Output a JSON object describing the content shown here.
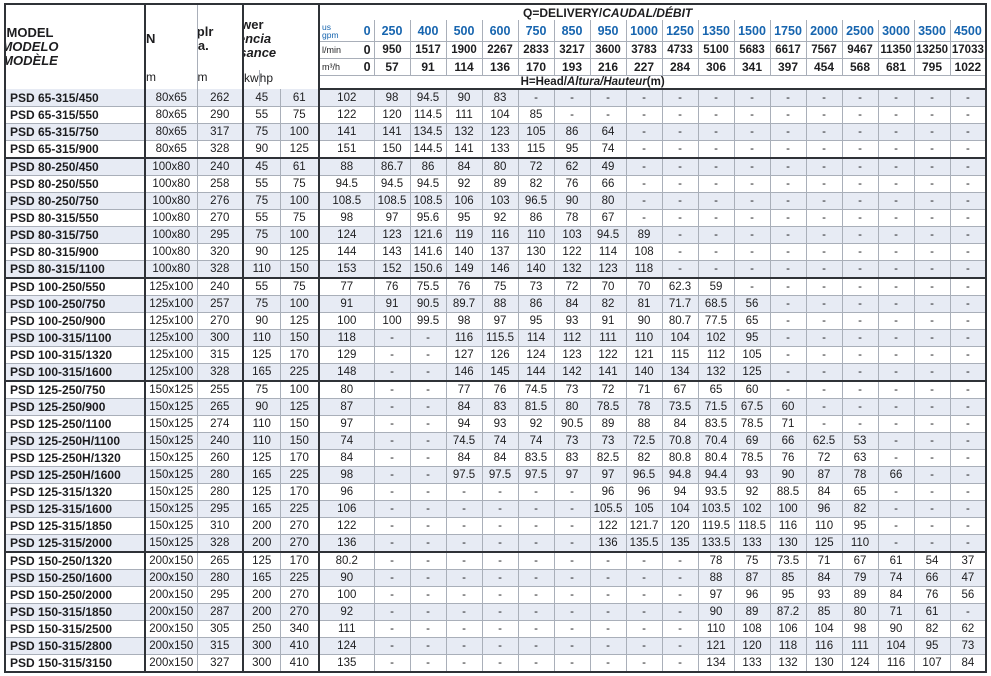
{
  "colors": {
    "accent_blue": "#1765af",
    "stripe_row": "#e7ebf4",
    "border_dark": "#2f3237",
    "border_light": "#a9afb9",
    "text": "#1d1d1f"
  },
  "table": {
    "q_title_plain": "Q=DELIVERY/",
    "q_title_italic": "CAUDAL/DÉBIT",
    "h_title_plain": "H=Head/",
    "h_title_italic": "Altura/Hauteur",
    "h_title_suffix": "(m)",
    "model_header": {
      "line1": "MODEL",
      "line2": "MODELO",
      "line3": "MODÈLE"
    },
    "dn_header": {
      "label": "DN",
      "unit": "mm"
    },
    "implr_header": {
      "line1": "Implr",
      "line2": "dia.",
      "unit": "mm"
    },
    "power_header": {
      "line1": "Power",
      "line2": "Potencia",
      "line3": "Puissance",
      "kw": "kw",
      "hp": "hp"
    },
    "flow_rows": [
      {
        "label_top": "us",
        "label_bottom": "gpm",
        "values": [
          "0",
          "250",
          "400",
          "500",
          "600",
          "750",
          "850",
          "950",
          "1000",
          "1250",
          "1350",
          "1500",
          "1750",
          "2000",
          "2500",
          "3000",
          "3500",
          "4500"
        ]
      },
      {
        "label": "l/min",
        "values": [
          "0",
          "950",
          "1517",
          "1900",
          "2267",
          "2833",
          "3217",
          "3600",
          "3783",
          "4733",
          "5100",
          "5683",
          "6617",
          "7567",
          "9467",
          "11350",
          "13250",
          "17033"
        ]
      },
      {
        "label": "m³/h",
        "values": [
          "0",
          "57",
          "91",
          "114",
          "136",
          "170",
          "193",
          "216",
          "227",
          "284",
          "306",
          "341",
          "397",
          "454",
          "568",
          "681",
          "795",
          "1022"
        ]
      }
    ],
    "rows": [
      {
        "model": "PSD 65-315/450",
        "dn": "80x65",
        "implr": "262",
        "kw": "45",
        "hp": "61",
        "group_end": false,
        "heads": [
          "102",
          "98",
          "94.5",
          "90",
          "83",
          "-",
          "-",
          "-",
          "-",
          "-",
          "-",
          "-",
          "-",
          "-",
          "-",
          "-",
          "-",
          "-"
        ]
      },
      {
        "model": "PSD 65-315/550",
        "dn": "80x65",
        "implr": "290",
        "kw": "55",
        "hp": "75",
        "group_end": false,
        "heads": [
          "122",
          "120",
          "114.5",
          "111",
          "104",
          "85",
          "-",
          "-",
          "-",
          "-",
          "-",
          "-",
          "-",
          "-",
          "-",
          "-",
          "-",
          "-"
        ]
      },
      {
        "model": "PSD 65-315/750",
        "dn": "80x65",
        "implr": "317",
        "kw": "75",
        "hp": "100",
        "group_end": false,
        "heads": [
          "141",
          "141",
          "134.5",
          "132",
          "123",
          "105",
          "86",
          "64",
          "-",
          "-",
          "-",
          "-",
          "-",
          "-",
          "-",
          "-",
          "-",
          "-"
        ]
      },
      {
        "model": "PSD 65-315/900",
        "dn": "80x65",
        "implr": "328",
        "kw": "90",
        "hp": "125",
        "group_end": true,
        "heads": [
          "151",
          "150",
          "144.5",
          "141",
          "133",
          "115",
          "95",
          "74",
          "-",
          "-",
          "-",
          "-",
          "-",
          "-",
          "-",
          "-",
          "-",
          "-"
        ]
      },
      {
        "model": "PSD 80-250/450",
        "dn": "100x80",
        "implr": "240",
        "kw": "45",
        "hp": "61",
        "group_end": false,
        "heads": [
          "88",
          "86.7",
          "86",
          "84",
          "80",
          "72",
          "62",
          "49",
          "-",
          "-",
          "-",
          "-",
          "-",
          "-",
          "-",
          "-",
          "-",
          "-"
        ]
      },
      {
        "model": "PSD 80-250/550",
        "dn": "100x80",
        "implr": "258",
        "kw": "55",
        "hp": "75",
        "group_end": false,
        "heads": [
          "94.5",
          "94.5",
          "94.5",
          "92",
          "89",
          "82",
          "76",
          "66",
          "-",
          "-",
          "-",
          "-",
          "-",
          "-",
          "-",
          "-",
          "-",
          "-"
        ]
      },
      {
        "model": "PSD 80-250/750",
        "dn": "100x80",
        "implr": "276",
        "kw": "75",
        "hp": "100",
        "group_end": false,
        "heads": [
          "108.5",
          "108.5",
          "108.5",
          "106",
          "103",
          "96.5",
          "90",
          "80",
          "-",
          "-",
          "-",
          "-",
          "-",
          "-",
          "-",
          "-",
          "-",
          "-"
        ]
      },
      {
        "model": "PSD 80-315/550",
        "dn": "100x80",
        "implr": "270",
        "kw": "55",
        "hp": "75",
        "group_end": false,
        "heads": [
          "98",
          "97",
          "95.6",
          "95",
          "92",
          "86",
          "78",
          "67",
          "-",
          "-",
          "-",
          "-",
          "-",
          "-",
          "-",
          "-",
          "-",
          "-"
        ]
      },
      {
        "model": "PSD 80-315/750",
        "dn": "100x80",
        "implr": "295",
        "kw": "75",
        "hp": "100",
        "group_end": false,
        "heads": [
          "124",
          "123",
          "121.6",
          "119",
          "116",
          "110",
          "103",
          "94.5",
          "89",
          "-",
          "-",
          "-",
          "-",
          "-",
          "-",
          "-",
          "-",
          "-"
        ]
      },
      {
        "model": "PSD 80-315/900",
        "dn": "100x80",
        "implr": "320",
        "kw": "90",
        "hp": "125",
        "group_end": false,
        "heads": [
          "144",
          "143",
          "141.6",
          "140",
          "137",
          "130",
          "122",
          "114",
          "108",
          "-",
          "-",
          "-",
          "-",
          "-",
          "-",
          "-",
          "-",
          "-"
        ]
      },
      {
        "model": "PSD 80-315/1100",
        "dn": "100x80",
        "implr": "328",
        "kw": "110",
        "hp": "150",
        "group_end": true,
        "heads": [
          "153",
          "152",
          "150.6",
          "149",
          "146",
          "140",
          "132",
          "123",
          "118",
          "-",
          "-",
          "-",
          "-",
          "-",
          "-",
          "-",
          "-",
          "-"
        ]
      },
      {
        "model": "PSD 100-250/550",
        "dn": "125x100",
        "implr": "240",
        "kw": "55",
        "hp": "75",
        "group_end": false,
        "heads": [
          "77",
          "76",
          "75.5",
          "76",
          "75",
          "73",
          "72",
          "70",
          "70",
          "62.3",
          "59",
          "-",
          "-",
          "-",
          "-",
          "-",
          "-",
          "-"
        ]
      },
      {
        "model": "PSD 100-250/750",
        "dn": "125x100",
        "implr": "257",
        "kw": "75",
        "hp": "100",
        "group_end": false,
        "heads": [
          "91",
          "91",
          "90.5",
          "89.7",
          "88",
          "86",
          "84",
          "82",
          "81",
          "71.7",
          "68.5",
          "56",
          "-",
          "-",
          "-",
          "-",
          "-",
          "-"
        ]
      },
      {
        "model": "PSD 100-250/900",
        "dn": "125x100",
        "implr": "270",
        "kw": "90",
        "hp": "125",
        "group_end": false,
        "heads": [
          "100",
          "100",
          "99.5",
          "98",
          "97",
          "95",
          "93",
          "91",
          "90",
          "80.7",
          "77.5",
          "65",
          "-",
          "-",
          "-",
          "-",
          "-",
          "-"
        ]
      },
      {
        "model": "PSD 100-315/1100",
        "dn": "125x100",
        "implr": "300",
        "kw": "110",
        "hp": "150",
        "group_end": false,
        "heads": [
          "118",
          "-",
          "-",
          "116",
          "115.5",
          "114",
          "112",
          "111",
          "110",
          "104",
          "102",
          "95",
          "-",
          "-",
          "-",
          "-",
          "-",
          "-"
        ]
      },
      {
        "model": "PSD 100-315/1320",
        "dn": "125x100",
        "implr": "315",
        "kw": "125",
        "hp": "170",
        "group_end": false,
        "heads": [
          "129",
          "-",
          "-",
          "127",
          "126",
          "124",
          "123",
          "122",
          "121",
          "115",
          "112",
          "105",
          "-",
          "-",
          "-",
          "-",
          "-",
          "-"
        ]
      },
      {
        "model": "PSD 100-315/1600",
        "dn": "125x100",
        "implr": "328",
        "kw": "165",
        "hp": "225",
        "group_end": true,
        "heads": [
          "148",
          "-",
          "-",
          "146",
          "145",
          "144",
          "142",
          "141",
          "140",
          "134",
          "132",
          "125",
          "-",
          "-",
          "-",
          "-",
          "-",
          "-"
        ]
      },
      {
        "model": "PSD 125-250/750",
        "dn": "150x125",
        "implr": "255",
        "kw": "75",
        "hp": "100",
        "group_end": false,
        "heads": [
          "80",
          "-",
          "-",
          "77",
          "76",
          "74.5",
          "73",
          "72",
          "71",
          "67",
          "65",
          "60",
          "-",
          "-",
          "-",
          "-",
          "-",
          "-"
        ]
      },
      {
        "model": "PSD 125-250/900",
        "dn": "150x125",
        "implr": "265",
        "kw": "90",
        "hp": "125",
        "group_end": false,
        "heads": [
          "87",
          "-",
          "-",
          "84",
          "83",
          "81.5",
          "80",
          "78.5",
          "78",
          "73.5",
          "71.5",
          "67.5",
          "60",
          "-",
          "-",
          "-",
          "-",
          "-"
        ]
      },
      {
        "model": "PSD 125-250/1100",
        "dn": "150x125",
        "implr": "274",
        "kw": "110",
        "hp": "150",
        "group_end": false,
        "heads": [
          "97",
          "-",
          "-",
          "94",
          "93",
          "92",
          "90.5",
          "89",
          "88",
          "84",
          "83.5",
          "78.5",
          "71",
          "-",
          "-",
          "-",
          "-",
          "-"
        ]
      },
      {
        "model": "PSD 125-250H/1100",
        "dn": "150x125",
        "implr": "240",
        "kw": "110",
        "hp": "150",
        "group_end": false,
        "heads": [
          "74",
          "-",
          "-",
          "74.5",
          "74",
          "74",
          "73",
          "73",
          "72.5",
          "70.8",
          "70.4",
          "69",
          "66",
          "62.5",
          "53",
          "-",
          "-",
          "-"
        ]
      },
      {
        "model": "PSD 125-250H/1320",
        "dn": "150x125",
        "implr": "260",
        "kw": "125",
        "hp": "170",
        "group_end": false,
        "heads": [
          "84",
          "-",
          "-",
          "84",
          "84",
          "83.5",
          "83",
          "82.5",
          "82",
          "80.8",
          "80.4",
          "78.5",
          "76",
          "72",
          "63",
          "-",
          "-",
          "-"
        ]
      },
      {
        "model": "PSD 125-250H/1600",
        "dn": "150x125",
        "implr": "280",
        "kw": "165",
        "hp": "225",
        "group_end": false,
        "heads": [
          "98",
          "-",
          "-",
          "97.5",
          "97.5",
          "97.5",
          "97",
          "97",
          "96.5",
          "94.8",
          "94.4",
          "93",
          "90",
          "87",
          "78",
          "66",
          "-",
          "-"
        ]
      },
      {
        "model": "PSD 125-315/1320",
        "dn": "150x125",
        "implr": "280",
        "kw": "125",
        "hp": "170",
        "group_end": false,
        "heads": [
          "96",
          "-",
          "-",
          "-",
          "-",
          "-",
          "-",
          "96",
          "96",
          "94",
          "93.5",
          "92",
          "88.5",
          "84",
          "65",
          "-",
          "-",
          "-"
        ]
      },
      {
        "model": "PSD 125-315/1600",
        "dn": "150x125",
        "implr": "295",
        "kw": "165",
        "hp": "225",
        "group_end": false,
        "heads": [
          "106",
          "-",
          "-",
          "-",
          "-",
          "-",
          "-",
          "105.5",
          "105",
          "104",
          "103.5",
          "102",
          "100",
          "96",
          "82",
          "-",
          "-",
          "-"
        ]
      },
      {
        "model": "PSD 125-315/1850",
        "dn": "150x125",
        "implr": "310",
        "kw": "200",
        "hp": "270",
        "group_end": false,
        "heads": [
          "122",
          "-",
          "-",
          "-",
          "-",
          "-",
          "-",
          "122",
          "121.7",
          "120",
          "119.5",
          "118.5",
          "116",
          "110",
          "95",
          "-",
          "-",
          "-"
        ]
      },
      {
        "model": "PSD 125-315/2000",
        "dn": "150x125",
        "implr": "328",
        "kw": "200",
        "hp": "270",
        "group_end": true,
        "heads": [
          "136",
          "-",
          "-",
          "-",
          "-",
          "-",
          "-",
          "136",
          "135.5",
          "135",
          "133.5",
          "133",
          "130",
          "125",
          "110",
          "-",
          "-",
          "-"
        ]
      },
      {
        "model": "PSD 150-250/1320",
        "dn": "200x150",
        "implr": "265",
        "kw": "125",
        "hp": "170",
        "group_end": false,
        "heads": [
          "80.2",
          "-",
          "-",
          "-",
          "-",
          "-",
          "-",
          "-",
          "-",
          "-",
          "78",
          "75",
          "73.5",
          "71",
          "67",
          "61",
          "54",
          "37"
        ]
      },
      {
        "model": "PSD 150-250/1600",
        "dn": "200x150",
        "implr": "280",
        "kw": "165",
        "hp": "225",
        "group_end": false,
        "heads": [
          "90",
          "-",
          "-",
          "-",
          "-",
          "-",
          "-",
          "-",
          "-",
          "-",
          "88",
          "87",
          "85",
          "84",
          "79",
          "74",
          "66",
          "47"
        ]
      },
      {
        "model": "PSD 150-250/2000",
        "dn": "200x150",
        "implr": "295",
        "kw": "200",
        "hp": "270",
        "group_end": false,
        "heads": [
          "100",
          "-",
          "-",
          "-",
          "-",
          "-",
          "-",
          "-",
          "-",
          "-",
          "97",
          "96",
          "95",
          "93",
          "89",
          "84",
          "76",
          "56"
        ]
      },
      {
        "model": "PSD 150-315/1850",
        "dn": "200x150",
        "implr": "287",
        "kw": "200",
        "hp": "270",
        "group_end": false,
        "heads": [
          "92",
          "-",
          "-",
          "-",
          "-",
          "-",
          "-",
          "-",
          "-",
          "-",
          "90",
          "89",
          "87.2",
          "85",
          "80",
          "71",
          "61",
          "-"
        ]
      },
      {
        "model": "PSD 150-315/2500",
        "dn": "200x150",
        "implr": "305",
        "kw": "250",
        "hp": "340",
        "group_end": false,
        "heads": [
          "111",
          "-",
          "-",
          "-",
          "-",
          "-",
          "-",
          "-",
          "-",
          "-",
          "110",
          "108",
          "106",
          "104",
          "98",
          "90",
          "82",
          "62"
        ]
      },
      {
        "model": "PSD 150-315/2800",
        "dn": "200x150",
        "implr": "315",
        "kw": "300",
        "hp": "410",
        "group_end": false,
        "heads": [
          "124",
          "-",
          "-",
          "-",
          "-",
          "-",
          "-",
          "-",
          "-",
          "-",
          "121",
          "120",
          "118",
          "116",
          "111",
          "104",
          "95",
          "73"
        ]
      },
      {
        "model": "PSD 150-315/3150",
        "dn": "200x150",
        "implr": "327",
        "kw": "300",
        "hp": "410",
        "group_end": false,
        "heads": [
          "135",
          "-",
          "-",
          "-",
          "-",
          "-",
          "-",
          "-",
          "-",
          "-",
          "134",
          "133",
          "132",
          "130",
          "124",
          "116",
          "107",
          "84"
        ]
      }
    ]
  }
}
